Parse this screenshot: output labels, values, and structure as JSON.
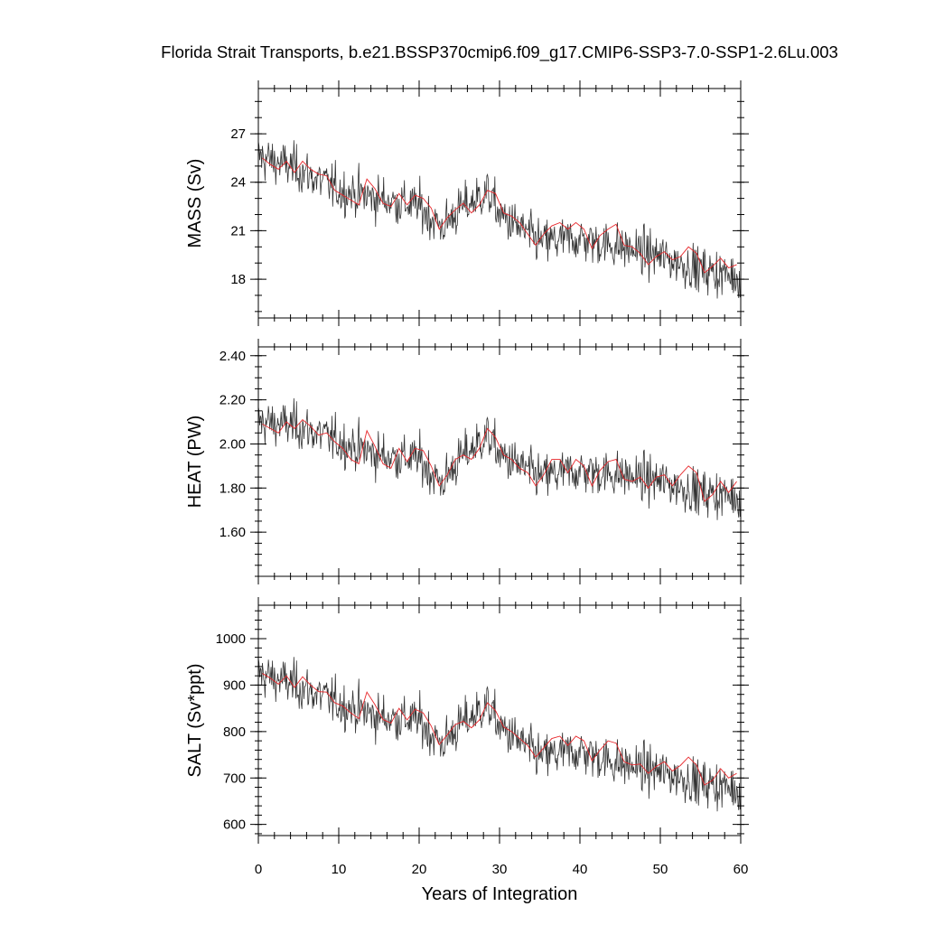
{
  "title": "Florida Strait Transports, b.e21.BSSP370cmip6.f09_g17.CMIP6-SSP3-7.0-SSP1-2.6Lu.003",
  "chart_data": [
    {
      "type": "line",
      "ylabel": "MASS (Sv)",
      "xlabel": "",
      "xlim": [
        0,
        60
      ],
      "ylim": [
        15.6,
        29.8
      ],
      "yticks": [
        18,
        21,
        24,
        27
      ],
      "ytick_labels": [
        "18",
        "21",
        "24",
        "27"
      ],
      "yminor_step": 1,
      "grid": false,
      "series": [
        {
          "color": "#333333",
          "style": "monthly",
          "x": [
            0,
            5,
            10,
            15,
            20,
            22.8,
            25,
            28.5,
            30,
            35,
            40,
            45,
            50,
            55,
            60
          ],
          "values": [
            25.6,
            24.8,
            23.5,
            23.0,
            22.5,
            21.2,
            22.3,
            23.4,
            22.0,
            20.3,
            20.5,
            20.0,
            19.4,
            18.6,
            18.1
          ]
        },
        {
          "color": "#e8262a",
          "style": "annual",
          "x": [
            0.5,
            1.5,
            2.5,
            3.5,
            4.5,
            5.5,
            6.5,
            7.5,
            8.5,
            9.5,
            10.5,
            11.5,
            12.5,
            13.5,
            14.5,
            15.5,
            16.5,
            17.5,
            18.5,
            19.5,
            20.5,
            21.5,
            22.5,
            23.5,
            24.5,
            25.5,
            26.5,
            27.5,
            28.5,
            29.5,
            30.5,
            31.5,
            32.5,
            33.5,
            34.5,
            35.5,
            36.5,
            37.5,
            38.5,
            39.5,
            40.5,
            41.5,
            42.5,
            43.5,
            44.5,
            45.5,
            46.5,
            47.5,
            48.5,
            49.5,
            50.5,
            51.5,
            52.5,
            53.5,
            54.5,
            55.5,
            56.5,
            57.5,
            58.5,
            59.5
          ],
          "values": [
            25.5,
            25.1,
            24.8,
            25.3,
            24.6,
            25.3,
            24.8,
            24.5,
            24.4,
            23.5,
            23.2,
            22.9,
            22.6,
            24.2,
            23.6,
            22.7,
            22.5,
            23.3,
            22.6,
            23.2,
            23.0,
            22.4,
            21.1,
            21.8,
            22.3,
            22.7,
            22.1,
            22.6,
            23.5,
            23.3,
            22.1,
            21.9,
            21.5,
            20.8,
            20.1,
            20.8,
            21.3,
            21.5,
            21.1,
            21.5,
            21.1,
            19.9,
            20.7,
            21.1,
            21.4,
            20.1,
            20.0,
            19.6,
            18.9,
            19.4,
            19.7,
            19.2,
            19.4,
            20.0,
            19.6,
            18.4,
            18.8,
            19.3,
            18.7,
            18.9
          ]
        }
      ]
    },
    {
      "type": "line",
      "ylabel": "HEAT (PW)",
      "xlabel": "",
      "xlim": [
        0,
        60
      ],
      "ylim": [
        1.4,
        2.44
      ],
      "yticks": [
        1.6,
        1.8,
        2.0,
        2.2,
        2.4
      ],
      "ytick_labels": [
        "1.60",
        "1.80",
        "2.00",
        "2.20",
        "2.40"
      ],
      "yminor_step": 0.05,
      "grid": false,
      "series": [
        {
          "color": "#333333",
          "style": "monthly",
          "x": [
            0,
            5,
            10,
            15,
            20,
            22.8,
            25,
            28.5,
            30,
            35,
            40,
            45,
            50,
            55,
            60
          ],
          "values": [
            2.1,
            2.08,
            2.01,
            1.95,
            1.93,
            1.82,
            1.93,
            2.04,
            1.95,
            1.85,
            1.88,
            1.86,
            1.83,
            1.78,
            1.76
          ]
        },
        {
          "color": "#e8262a",
          "style": "annual",
          "x": [
            0.5,
            1.5,
            2.5,
            3.5,
            4.5,
            5.5,
            6.5,
            7.5,
            8.5,
            9.5,
            10.5,
            11.5,
            12.5,
            13.5,
            14.5,
            15.5,
            16.5,
            17.5,
            18.5,
            19.5,
            20.5,
            21.5,
            22.5,
            23.5,
            24.5,
            25.5,
            26.5,
            27.5,
            28.5,
            29.5,
            30.5,
            31.5,
            32.5,
            33.5,
            34.5,
            35.5,
            36.5,
            37.5,
            38.5,
            39.5,
            40.5,
            41.5,
            42.5,
            43.5,
            44.5,
            45.5,
            46.5,
            47.5,
            48.5,
            49.5,
            50.5,
            51.5,
            52.5,
            53.5,
            54.5,
            55.5,
            56.5,
            57.5,
            58.5,
            59.5
          ],
          "values": [
            2.09,
            2.07,
            2.05,
            2.1,
            2.07,
            2.11,
            2.08,
            2.04,
            2.05,
            2.01,
            1.98,
            1.93,
            1.91,
            2.06,
            1.99,
            1.91,
            1.89,
            1.98,
            1.92,
            1.98,
            1.97,
            1.9,
            1.81,
            1.86,
            1.93,
            1.95,
            1.93,
            1.98,
            2.07,
            2.03,
            1.95,
            1.93,
            1.89,
            1.87,
            1.81,
            1.86,
            1.93,
            1.93,
            1.87,
            1.93,
            1.9,
            1.81,
            1.88,
            1.92,
            1.93,
            1.84,
            1.83,
            1.85,
            1.8,
            1.85,
            1.86,
            1.81,
            1.86,
            1.9,
            1.87,
            1.74,
            1.77,
            1.83,
            1.78,
            1.83
          ]
        }
      ]
    },
    {
      "type": "line",
      "ylabel": "SALT (Sv*ppt)",
      "xlabel": "Years of Integration",
      "xlim": [
        0,
        60
      ],
      "xticks": [
        0,
        10,
        20,
        30,
        40,
        50,
        60
      ],
      "xtick_labels": [
        "0",
        "10",
        "20",
        "30",
        "40",
        "50",
        "60"
      ],
      "ylim": [
        576,
        1072
      ],
      "yticks": [
        600,
        700,
        800,
        900,
        1000
      ],
      "ytick_labels": [
        "600",
        "700",
        "800",
        "900",
        "1000"
      ],
      "yminor_step": 20,
      "grid": false,
      "series": [
        {
          "color": "#333333",
          "style": "monthly",
          "x": [
            0,
            5,
            10,
            15,
            20,
            22.8,
            25,
            28.5,
            30,
            35,
            40,
            45,
            50,
            55,
            60
          ],
          "values": [
            925,
            898,
            860,
            832,
            823,
            772,
            812,
            858,
            810,
            745,
            758,
            730,
            713,
            690,
            675
          ]
        },
        {
          "color": "#e8262a",
          "style": "annual",
          "x": [
            0.5,
            1.5,
            2.5,
            3.5,
            4.5,
            5.5,
            6.5,
            7.5,
            8.5,
            9.5,
            10.5,
            11.5,
            12.5,
            13.5,
            14.5,
            15.5,
            16.5,
            17.5,
            18.5,
            19.5,
            20.5,
            21.5,
            22.5,
            23.5,
            24.5,
            25.5,
            26.5,
            27.5,
            28.5,
            29.5,
            30.5,
            31.5,
            32.5,
            33.5,
            34.5,
            35.5,
            36.5,
            37.5,
            38.5,
            39.5,
            40.5,
            41.5,
            42.5,
            43.5,
            44.5,
            45.5,
            46.5,
            47.5,
            48.5,
            49.5,
            50.5,
            51.5,
            52.5,
            53.5,
            54.5,
            55.5,
            56.5,
            57.5,
            58.5,
            59.5
          ],
          "values": [
            925,
            915,
            902,
            920,
            895,
            918,
            900,
            886,
            885,
            862,
            855,
            840,
            828,
            885,
            858,
            826,
            818,
            850,
            825,
            848,
            840,
            812,
            772,
            793,
            815,
            822,
            808,
            825,
            862,
            845,
            810,
            800,
            785,
            770,
            745,
            765,
            785,
            790,
            770,
            790,
            780,
            737,
            760,
            780,
            775,
            735,
            728,
            730,
            710,
            725,
            735,
            715,
            727,
            745,
            728,
            685,
            695,
            720,
            700,
            710
          ]
        }
      ]
    }
  ]
}
